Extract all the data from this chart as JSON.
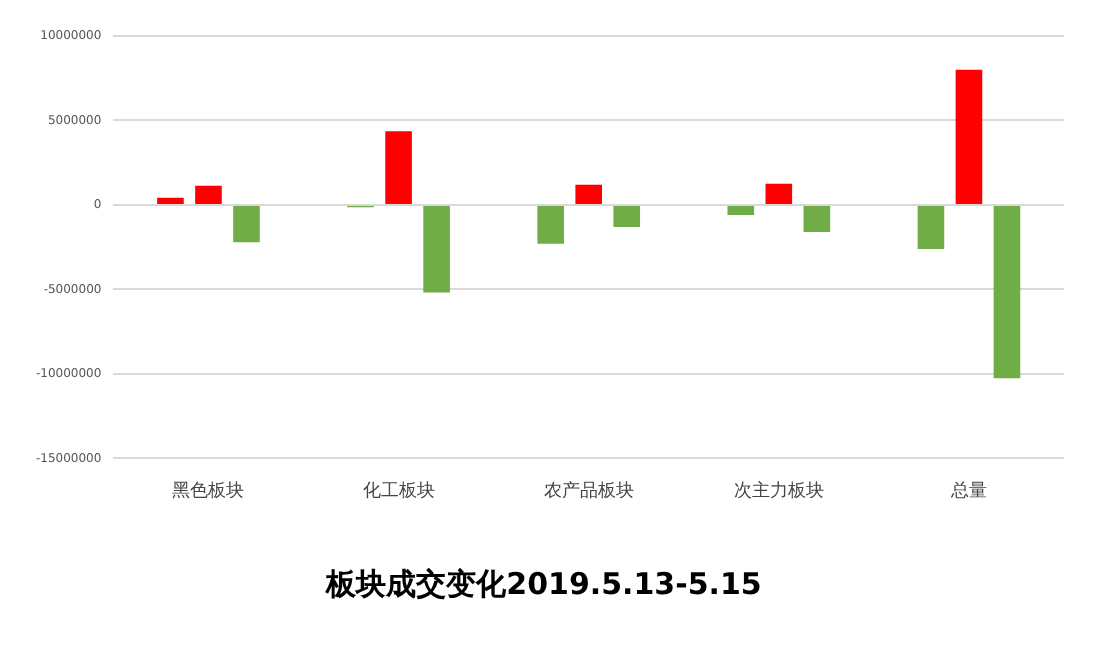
{
  "chart_data": {
    "type": "bar",
    "title": "板块成交变化2019.5.13-5.15",
    "categories": [
      "黑色板块",
      "化工板块",
      "农产品板块",
      "次主力板块",
      "总量"
    ],
    "series": [
      {
        "colors": [
          "#ff0000",
          "#70ad47",
          "#70ad47",
          "#70ad47",
          "#70ad47"
        ],
        "values": [
          430000,
          -140000,
          -2300000,
          -600000,
          -2600000
        ]
      },
      {
        "colors": [
          "#ff0000",
          "#ff0000",
          "#ff0000",
          "#ff0000",
          "#ff0000"
        ],
        "values": [
          1140000,
          4360000,
          1200000,
          1250000,
          8000000
        ]
      },
      {
        "colors": [
          "#70ad47",
          "#70ad47",
          "#70ad47",
          "#70ad47",
          "#70ad47"
        ],
        "values": [
          -2200000,
          -5180000,
          -1300000,
          -1600000,
          -10250000
        ]
      }
    ],
    "ylim": [
      -15000000,
      10000000
    ],
    "yticks": [
      -15000000,
      -10000000,
      -5000000,
      0,
      5000000,
      10000000
    ],
    "grid": "y",
    "legend": false
  }
}
